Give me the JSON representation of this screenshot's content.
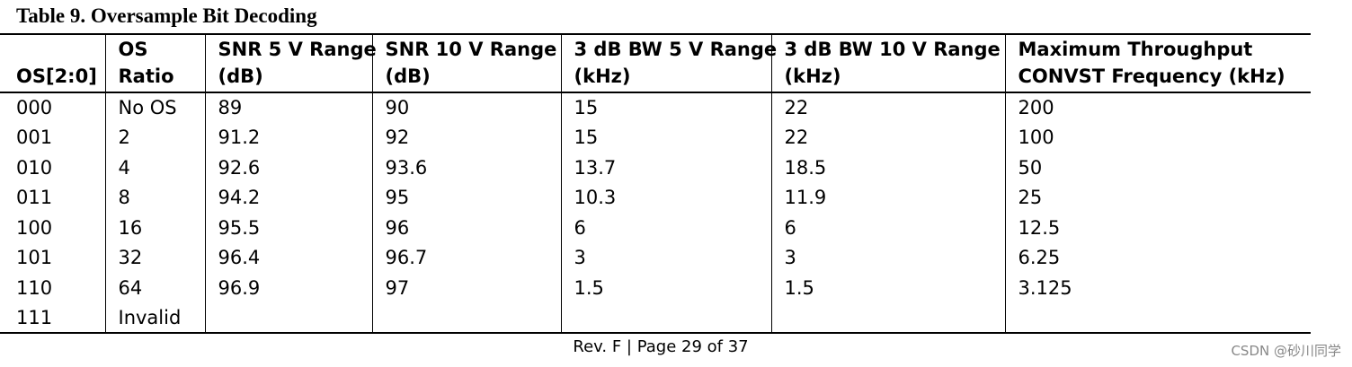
{
  "title": "Table 9. Oversample Bit Decoding",
  "table": {
    "header": [
      [
        "OS[2:0]"
      ],
      [
        "OS",
        "Ratio"
      ],
      [
        "SNR 5 V Range",
        "(dB)"
      ],
      [
        "SNR 10 V Range",
        "(dB)"
      ],
      [
        "3 dB BW 5 V Range",
        "(kHz)"
      ],
      [
        "3 dB BW 10 V Range",
        "(kHz)"
      ],
      [
        "Maximum Throughput",
        "CONVST Frequency (kHz)"
      ]
    ],
    "rows": [
      [
        "000",
        "No OS",
        "89",
        "90",
        "15",
        "22",
        "200"
      ],
      [
        "001",
        "2",
        "91.2",
        "92",
        "15",
        "22",
        "100"
      ],
      [
        "010",
        "4",
        "92.6",
        "93.6",
        "13.7",
        "18.5",
        "50"
      ],
      [
        "011",
        "8",
        "94.2",
        "95",
        "10.3",
        "11.9",
        "25"
      ],
      [
        "100",
        "16",
        "95.5",
        "96",
        "6",
        "6",
        "12.5"
      ],
      [
        "101",
        "32",
        "96.4",
        "96.7",
        "3",
        "3",
        "6.25"
      ],
      [
        "110",
        "64",
        "96.9",
        "97",
        "1.5",
        "1.5",
        "3.125"
      ],
      [
        "111",
        "Invalid"
      ]
    ]
  },
  "footer": "Rev. F | Page 29 of 37",
  "watermark": "CSDN @砂川同学"
}
